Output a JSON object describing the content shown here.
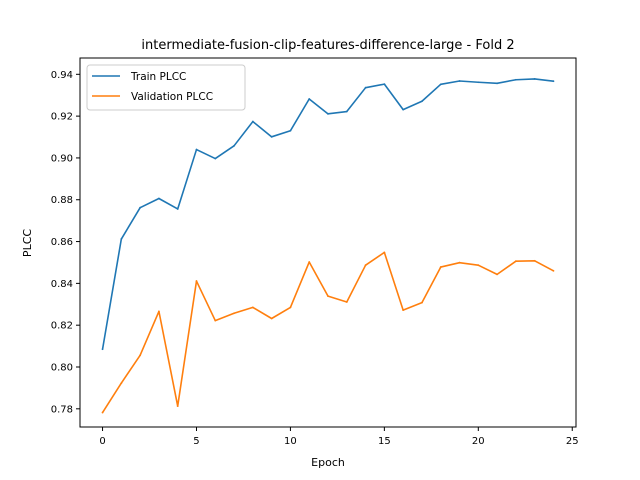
{
  "chart_data": {
    "type": "line",
    "title": "intermediate-fusion-clip-features-difference-large - Fold 2",
    "xlabel": "Epoch",
    "ylabel": "PLCC",
    "xlim": [
      -1.2,
      25.2
    ],
    "ylim": [
      0.7713,
      0.9478
    ],
    "xticks": [
      0,
      5,
      10,
      15,
      20,
      25
    ],
    "yticks": [
      0.78,
      0.8,
      0.82,
      0.84,
      0.86,
      0.88,
      0.9,
      0.92,
      0.94
    ],
    "grid": false,
    "legend_position": "upper-left",
    "x": [
      0,
      1,
      2,
      3,
      4,
      5,
      6,
      7,
      8,
      9,
      10,
      11,
      12,
      13,
      14,
      15,
      16,
      17,
      18,
      19,
      20,
      21,
      22,
      23,
      24
    ],
    "series": [
      {
        "name": "Train PLCC",
        "color": "#1f77b4",
        "values": [
          0.8085,
          0.8612,
          0.8762,
          0.8806,
          0.8756,
          0.904,
          0.8997,
          0.9058,
          0.9174,
          0.9101,
          0.913,
          0.9282,
          0.9211,
          0.9222,
          0.9336,
          0.9353,
          0.9231,
          0.9271,
          0.9352,
          0.9368,
          0.9362,
          0.9357,
          0.9374,
          0.9378,
          0.9367
        ]
      },
      {
        "name": "Validation PLCC",
        "color": "#ff7f0e",
        "values": [
          0.7782,
          0.7923,
          0.8056,
          0.8266,
          0.7813,
          0.8411,
          0.8222,
          0.8257,
          0.8285,
          0.8232,
          0.8285,
          0.8502,
          0.8339,
          0.8311,
          0.8487,
          0.8548,
          0.8272,
          0.8308,
          0.8478,
          0.8499,
          0.8487,
          0.8443,
          0.8506,
          0.8508,
          0.846
        ]
      }
    ]
  }
}
